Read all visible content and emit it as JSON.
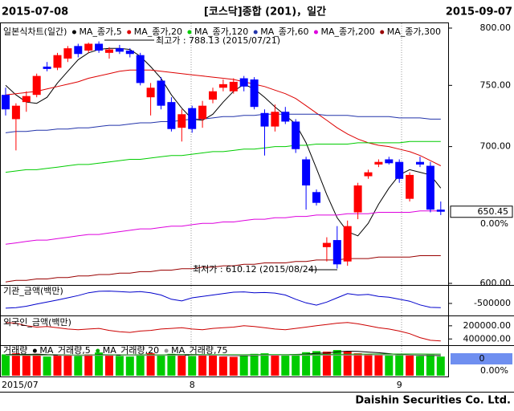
{
  "chart_data": [
    {
      "type": "candlestick",
      "title": "[코스닥]종합 (201)，일간",
      "start_date": "2015-07-08",
      "end_date": "2015-09-07",
      "label": "일본식차트(일간)",
      "categories": [
        "2015/07",
        null,
        null,
        null,
        null,
        null,
        null,
        null,
        null,
        null,
        null,
        null,
        null,
        null,
        null,
        null,
        null,
        null,
        "8",
        null,
        null,
        null,
        null,
        null,
        null,
        null,
        null,
        null,
        null,
        null,
        null,
        null,
        null,
        null,
        null,
        null,
        null,
        null,
        "9",
        null,
        null,
        null,
        null
      ],
      "open": [
        742,
        722,
        736,
        742,
        766,
        765,
        773,
        784,
        780,
        786,
        778,
        782,
        780,
        776,
        740,
        754,
        736,
        715,
        731,
        722,
        738,
        748,
        745,
        756,
        755,
        727,
        716,
        728,
        720,
        690,
        665,
        625,
        630,
        615,
        650,
        677,
        686,
        690,
        688,
        660,
        688,
        685,
        652
      ],
      "high": [
        748,
        735,
        745,
        760,
        770,
        778,
        784,
        786,
        787,
        788.13,
        783,
        785,
        782,
        778,
        752,
        757,
        740,
        730,
        733,
        737,
        748,
        755,
        756,
        758,
        757,
        730,
        734,
        732,
        722,
        692,
        667,
        632,
        640,
        644,
        672,
        682,
        690,
        692,
        690,
        680,
        692,
        688,
        658
      ],
      "low": [
        725,
        697,
        728,
        740,
        762,
        763,
        770,
        774,
        778,
        778,
        773,
        777,
        774,
        750,
        725,
        730,
        712,
        704,
        711,
        715,
        735,
        745,
        743,
        745,
        730,
        693,
        712,
        718,
        695,
        652,
        655,
        615,
        610.12,
        612,
        645,
        675,
        684,
        686,
        672,
        658,
        684,
        650,
        648
      ],
      "close": [
        730,
        733,
        741,
        758,
        764,
        776,
        782,
        777,
        786,
        780,
        781,
        779,
        777,
        752,
        748,
        733,
        714,
        726,
        714,
        733,
        745,
        751,
        753,
        749,
        732,
        716,
        728,
        720,
        698,
        670,
        657,
        628,
        613,
        640,
        670,
        680,
        688,
        687,
        675,
        678,
        686,
        652,
        650.45
      ],
      "up_color": "#ff0000",
      "down_color": "#0000ff",
      "series": [
        {
          "name": "MA_종가,5",
          "color": "#000000",
          "values": [
            750,
            742,
            736,
            735,
            740,
            752,
            762,
            772,
            778,
            781,
            782,
            782,
            781,
            775,
            766,
            756,
            742,
            731,
            722,
            721,
            726,
            736,
            745,
            751,
            747,
            740,
            732,
            725,
            718,
            703,
            683,
            663,
            646,
            636,
            633,
            642,
            656,
            668,
            678,
            682,
            680,
            678,
            668
          ]
        },
        {
          "name": "MA_종가,20",
          "color": "#dd0000",
          "values": [
            742,
            743,
            744,
            745,
            747,
            749,
            751,
            753,
            756,
            758,
            760,
            762,
            763,
            763,
            763,
            762,
            761,
            760,
            759,
            758,
            757,
            756,
            755,
            753,
            751,
            749,
            746,
            743,
            739,
            733,
            727,
            721,
            715,
            710,
            706,
            703,
            701,
            700,
            698,
            696,
            693,
            689,
            685
          ]
        },
        {
          "name": "MA_종가,120",
          "color": "#00cc00",
          "values": [
            680,
            681,
            682,
            682,
            683,
            684,
            685,
            686,
            686,
            687,
            688,
            689,
            690,
            690,
            691,
            692,
            693,
            693,
            694,
            695,
            696,
            696,
            697,
            698,
            698,
            699,
            700,
            700,
            701,
            701,
            702,
            702,
            702,
            702,
            703,
            703,
            703,
            703,
            703,
            704,
            704,
            704,
            704
          ]
        },
        {
          "name": "MA_종가,60",
          "color": "#2233aa",
          "values": [
            711,
            712,
            712,
            713,
            713,
            714,
            714,
            715,
            715,
            716,
            717,
            717,
            718,
            719,
            719,
            720,
            720,
            721,
            722,
            722,
            723,
            724,
            724,
            725,
            725,
            726,
            726,
            726,
            726,
            726,
            726,
            725,
            725,
            725,
            724,
            724,
            724,
            724,
            723,
            723,
            723,
            722,
            722
          ]
        },
        {
          "name": "MA_종가,200",
          "color": "#dd00dd",
          "values": [
            627,
            628,
            629,
            630,
            630,
            631,
            632,
            633,
            634,
            634,
            635,
            636,
            637,
            638,
            638,
            639,
            640,
            640,
            641,
            642,
            642,
            643,
            643,
            644,
            645,
            645,
            646,
            646,
            647,
            647,
            648,
            648,
            648,
            649,
            649,
            649,
            650,
            650,
            650,
            650,
            651,
            651,
            651
          ]
        },
        {
          "name": "MA_종가,300",
          "color": "#990000",
          "values": [
            601,
            602,
            602,
            603,
            603,
            604,
            604,
            605,
            605,
            606,
            606,
            607,
            607,
            608,
            608,
            609,
            609,
            610,
            610,
            611,
            611,
            612,
            612,
            613,
            613,
            614,
            614,
            614,
            615,
            615,
            616,
            616,
            616,
            617,
            617,
            617,
            618,
            618,
            618,
            618,
            619,
            619,
            619
          ]
        }
      ],
      "ylim": [
        600,
        800
      ],
      "log_scale": true,
      "yticks": [
        {
          "value": 800,
          "label": "800.00"
        },
        {
          "value": 750,
          "label": "750.00"
        },
        {
          "value": 700,
          "label": "700.00"
        },
        {
          "value": 600,
          "label": "600.00"
        }
      ],
      "annotations": [
        "최고가 : 788.13 (2015/07/21)",
        "최저가 : 610.12 (2015/08/24)"
      ],
      "last_price": 650.45,
      "change": "0.00%"
    },
    {
      "type": "line",
      "title": "기관_금액(백만)",
      "series": [
        {
          "color": "#0000cc",
          "values": [
            -670000,
            -650000,
            -600000,
            -520000,
            -450000,
            -380000,
            -300000,
            -220000,
            -120000,
            -70000,
            -60000,
            -80000,
            -100000,
            -80000,
            -120000,
            -200000,
            -350000,
            -410000,
            -300000,
            -250000,
            -200000,
            -150000,
            -100000,
            -90000,
            -120000,
            -110000,
            -130000,
            -200000,
            -350000,
            -480000,
            -560000,
            -450000,
            -300000,
            -150000,
            -200000,
            -180000,
            -250000,
            -280000,
            -350000,
            -420000,
            -550000,
            -640000,
            -650000
          ]
        }
      ],
      "ylim": [
        -900000,
        100000
      ],
      "yticks": [
        -500000
      ]
    },
    {
      "type": "line",
      "title": "외국인_금액(백만)",
      "series": [
        {
          "color": "#cc0000",
          "values": [
            150000,
            160000,
            200000,
            220000,
            210000,
            230000,
            250000,
            260000,
            250000,
            240000,
            270000,
            290000,
            300000,
            280000,
            270000,
            250000,
            240000,
            230000,
            250000,
            260000,
            240000,
            230000,
            220000,
            200000,
            210000,
            230000,
            250000,
            260000,
            240000,
            220000,
            200000,
            180000,
            160000,
            150000,
            170000,
            200000,
            230000,
            250000,
            280000,
            320000,
            380000,
            420000,
            430000
          ]
        }
      ],
      "ylim": [
        470000,
        80000
      ],
      "yticks": [
        {
          "value": 200000,
          "label": "200000.00"
        },
        {
          "value": 400000,
          "label": "400000.00"
        }
      ]
    },
    {
      "type": "bar",
      "title": "거래량",
      "values": [
        780,
        820,
        760,
        800,
        700,
        740,
        760,
        720,
        780,
        850,
        760,
        720,
        700,
        780,
        820,
        760,
        800,
        780,
        720,
        760,
        740,
        700,
        690,
        760,
        800,
        820,
        740,
        760,
        780,
        860,
        900,
        880,
        940,
        900,
        820,
        780,
        760,
        740,
        760,
        740,
        720,
        780,
        700
      ],
      "up_color": "#ff0000",
      "down_color": "#00cc00",
      "series": [
        {
          "name": "MA_거래량,5",
          "color": "#000000",
          "values": [
            770,
            775,
            780,
            785,
            772,
            764,
            756,
            744,
            740,
            770,
            766,
            762,
            762,
            758,
            766,
            756,
            776,
            772,
            776,
            768,
            760,
            740,
            738,
            734,
            738,
            754,
            762,
            756,
            780,
            792,
            820,
            832,
            872,
            896,
            888,
            864,
            840,
            808,
            772,
            760,
            744,
            748,
            732
          ]
        },
        {
          "name": "MA_거래량,20",
          "color": "#00aa00",
          "values": [
            755,
            756,
            757,
            758,
            758,
            758,
            759,
            760,
            760,
            761,
            762,
            762,
            763,
            763,
            764,
            764,
            765,
            765,
            766,
            767,
            767,
            767,
            768,
            769,
            770,
            771,
            772,
            773,
            775,
            777,
            780,
            783,
            786,
            789,
            791,
            792,
            793,
            794,
            794,
            794,
            793,
            792,
            790
          ]
        },
        {
          "name": "MA_거래량,75",
          "color": "#999999",
          "values": [
            740,
            740,
            741,
            741,
            741,
            742,
            742,
            742,
            743,
            743,
            743,
            744,
            744,
            744,
            745,
            745,
            745,
            746,
            746,
            746,
            747,
            747,
            747,
            748,
            748,
            748,
            749,
            749,
            750,
            750,
            751,
            752,
            753,
            754,
            755,
            756,
            757,
            757,
            758,
            758,
            758,
            759,
            759
          ]
        }
      ],
      "ylim": [
        0,
        1000
      ],
      "current": 0,
      "change": "0.00%"
    }
  ],
  "footer": "Daishin Securities Co. Ltd."
}
